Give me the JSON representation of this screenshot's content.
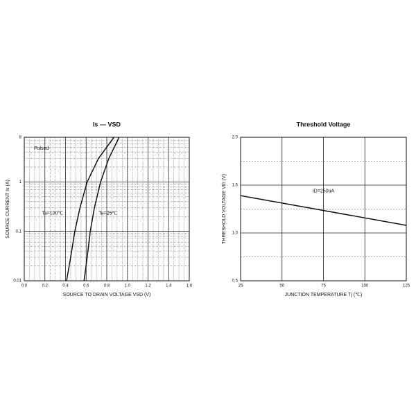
{
  "chart_data": [
    {
      "type": "line",
      "title": "Is — VSD",
      "xlabel": "SOURCE TO DRAIN VOLTAGE VSD (V)",
      "ylabel": "SOURCE CURRENT Is (A)",
      "log_y": true,
      "grid": true,
      "annotations": [
        "Pulsed"
      ],
      "xlim": [
        0,
        1.6
      ],
      "xticks": [
        {
          "value": 0,
          "label": "0.0"
        },
        0.2,
        0.4,
        0.6,
        0.8,
        {
          "value": 1,
          "label": "1.0"
        },
        1.2,
        1.4,
        1.6
      ],
      "ylim": [
        0.01,
        8
      ],
      "yticks": [
        0.01,
        0.1,
        1,
        8
      ],
      "series": [
        {
          "name": "Ta=100℃",
          "color": "#111111",
          "x": [
            0.41,
            0.45,
            0.49,
            0.54,
            0.61,
            0.72,
            0.87
          ],
          "values": [
            0.01,
            0.03,
            0.1,
            0.3,
            1,
            3,
            8
          ]
        },
        {
          "name": "Ta=25℃",
          "color": "#111111",
          "x": [
            0.58,
            0.61,
            0.64,
            0.68,
            0.74,
            0.82,
            0.92
          ],
          "values": [
            0.01,
            0.03,
            0.1,
            0.3,
            1,
            3,
            8
          ]
        }
      ]
    },
    {
      "type": "line",
      "title": "Threshold Voltage",
      "xlabel": "JUNCTION TEMPERATURE Tj (℃)",
      "ylabel": "THRESHOLD VOLTAGE Vth (V)",
      "log_y": false,
      "grid": true,
      "annotations": [],
      "xlim": [
        25,
        125
      ],
      "xticks": [
        25,
        50,
        75,
        100,
        125
      ],
      "ylim": [
        0.5,
        2.0
      ],
      "yticks": [
        {
          "value": 0.5,
          "label": "0.5"
        },
        {
          "value": 1,
          "label": "1.0"
        },
        {
          "value": 1.5,
          "label": "1.5"
        },
        {
          "value": 2,
          "label": "2.0"
        }
      ],
      "series": [
        {
          "name": "ID=250uA",
          "color": "#111111",
          "x": [
            25,
            125
          ],
          "values": [
            1.39,
            1.08
          ]
        }
      ]
    }
  ]
}
